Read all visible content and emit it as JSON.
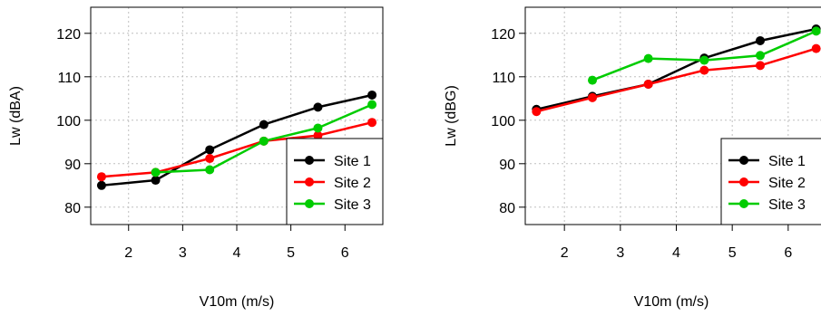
{
  "chart_data": [
    {
      "type": "line",
      "xlabel": "V10m (m/s)",
      "ylabel": "Lw (dBA)",
      "xlim": [
        1.3,
        6.7
      ],
      "ylim": [
        76,
        126
      ],
      "xticks": [
        2,
        3,
        4,
        5,
        6
      ],
      "yticks": [
        80,
        90,
        100,
        110,
        120
      ],
      "grid": true,
      "legend_position": "bottom-right",
      "x": [
        1.5,
        2.5,
        3.5,
        4.5,
        5.5,
        6.5
      ],
      "series": [
        {
          "name": "Site 1",
          "color": "#000000",
          "values": [
            85,
            86.2,
            93.2,
            99,
            103,
            105.8
          ]
        },
        {
          "name": "Site 2",
          "color": "#ff0000",
          "values": [
            87,
            88,
            91.2,
            95.2,
            96.5,
            99.5
          ]
        },
        {
          "name": "Site 3",
          "color": "#00cc00",
          "values": [
            null,
            88,
            88.6,
            95.2,
            98.2,
            103.6
          ]
        }
      ]
    },
    {
      "type": "line",
      "xlabel": "V10m (m/s)",
      "ylabel": "Lw (dBG)",
      "xlim": [
        1.3,
        6.7
      ],
      "ylim": [
        76,
        126
      ],
      "xticks": [
        2,
        3,
        4,
        5,
        6
      ],
      "yticks": [
        80,
        90,
        100,
        110,
        120
      ],
      "grid": true,
      "legend_position": "bottom-right",
      "x": [
        1.5,
        2.5,
        3.5,
        4.5,
        5.5,
        6.5
      ],
      "series": [
        {
          "name": "Site 1",
          "color": "#000000",
          "values": [
            102.5,
            105.5,
            108.3,
            114.3,
            118.3,
            121
          ]
        },
        {
          "name": "Site 2",
          "color": "#ff0000",
          "values": [
            102,
            105.2,
            108.3,
            111.5,
            112.6,
            116.5
          ]
        },
        {
          "name": "Site 3",
          "color": "#00cc00",
          "values": [
            null,
            109.2,
            114.2,
            113.8,
            114.9,
            120.5
          ]
        }
      ]
    }
  ]
}
